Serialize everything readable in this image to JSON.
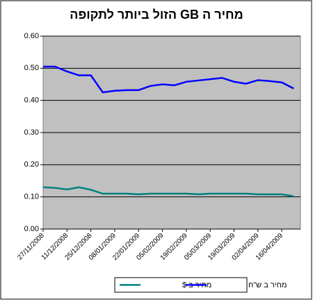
{
  "chart_data": {
    "type": "line",
    "title": "מחיר ה GB הזול ביותר לתקופה",
    "categories": [
      "27/11/2008",
      null,
      "11/12/2008",
      null,
      "25/12/2008",
      null,
      "08/01/2009",
      null,
      "22/01/2009",
      null,
      "05/02/2009",
      null,
      "19/02/2009",
      null,
      "05/03/2009",
      null,
      "19/03/2009",
      null,
      "02/04/2009",
      null,
      "16/04/2009",
      null
    ],
    "series": [
      {
        "name": "מחיר ב $",
        "color": "#008080",
        "values": [
          0.13,
          0.128,
          0.123,
          0.13,
          0.122,
          0.11,
          0.11,
          0.11,
          0.108,
          0.11,
          0.11,
          0.11,
          0.11,
          0.108,
          0.11,
          0.11,
          0.11,
          0.11,
          0.108,
          0.108,
          0.108,
          0.102
        ]
      },
      {
        "name": "מחיר ב ש\"ח",
        "color": "#0000ff",
        "values": [
          0.505,
          0.505,
          0.49,
          0.478,
          0.478,
          0.425,
          0.43,
          0.432,
          0.432,
          0.445,
          0.45,
          0.447,
          0.458,
          0.462,
          0.466,
          0.47,
          0.458,
          0.452,
          0.463,
          0.46,
          0.456,
          0.437
        ]
      }
    ],
    "ylim": [
      0,
      0.6
    ],
    "yticks": [
      {
        "value": 0,
        "label": "0.00"
      },
      {
        "value": 0.1,
        "label": "0.10"
      },
      {
        "value": 0.2,
        "label": "0.20"
      },
      {
        "value": 0.3,
        "label": "0.30"
      },
      {
        "value": 0.4,
        "label": "0.40"
      },
      {
        "value": 0.5,
        "label": "0.50"
      },
      {
        "value": 0.6,
        "label": "0.60"
      }
    ],
    "grid": true,
    "legend": "bottom"
  }
}
